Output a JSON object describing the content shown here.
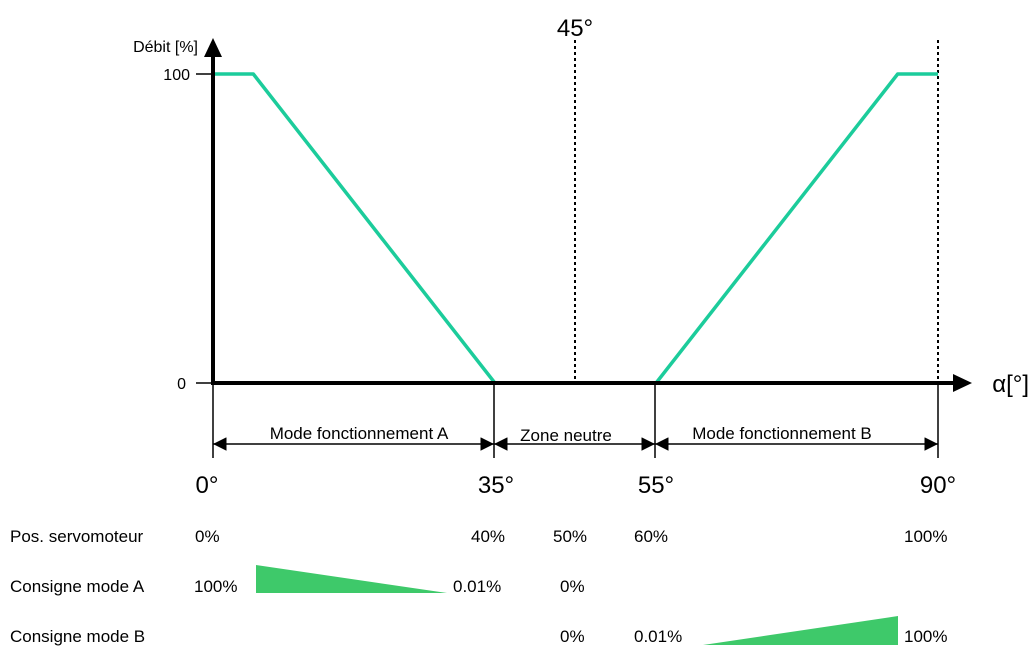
{
  "colors": {
    "curve": "#1ccc9b",
    "wedge": "#3ec96a",
    "axis": "#000000"
  },
  "axes": {
    "y_label": "Débit [%]",
    "x_label": "α[°]",
    "y_ticks": [
      "100",
      "0"
    ],
    "x_ticks": [
      "0°",
      "35°",
      "55°",
      "90°"
    ],
    "top_marker": "45°"
  },
  "zones": {
    "mode_a": "Mode fonctionnement A",
    "neutral": "Zone neutre",
    "mode_b": "Mode fonctionnement B"
  },
  "rows": {
    "servo": {
      "label": "Pos. servomoteur",
      "values": [
        "0%",
        "40%",
        "50%",
        "60%",
        "100%"
      ]
    },
    "mode_a": {
      "label": "Consigne mode A",
      "start": "100%",
      "end": "0.01%",
      "mid": "0%"
    },
    "mode_b": {
      "label": "Consigne mode B",
      "mid": "0%",
      "start": "0.01%",
      "end": "100%"
    }
  },
  "chart_data": {
    "type": "line",
    "xlabel": "α[°]",
    "ylabel": "Débit [%]",
    "xlim": [
      0,
      90
    ],
    "ylim": [
      0,
      100
    ],
    "x": [
      0,
      5,
      35,
      55,
      85,
      90
    ],
    "y": [
      100,
      100,
      0,
      0,
      100,
      100
    ],
    "xticks": [
      "0°",
      "35°",
      "55°",
      "90°"
    ],
    "annotations": [
      "45°"
    ]
  }
}
